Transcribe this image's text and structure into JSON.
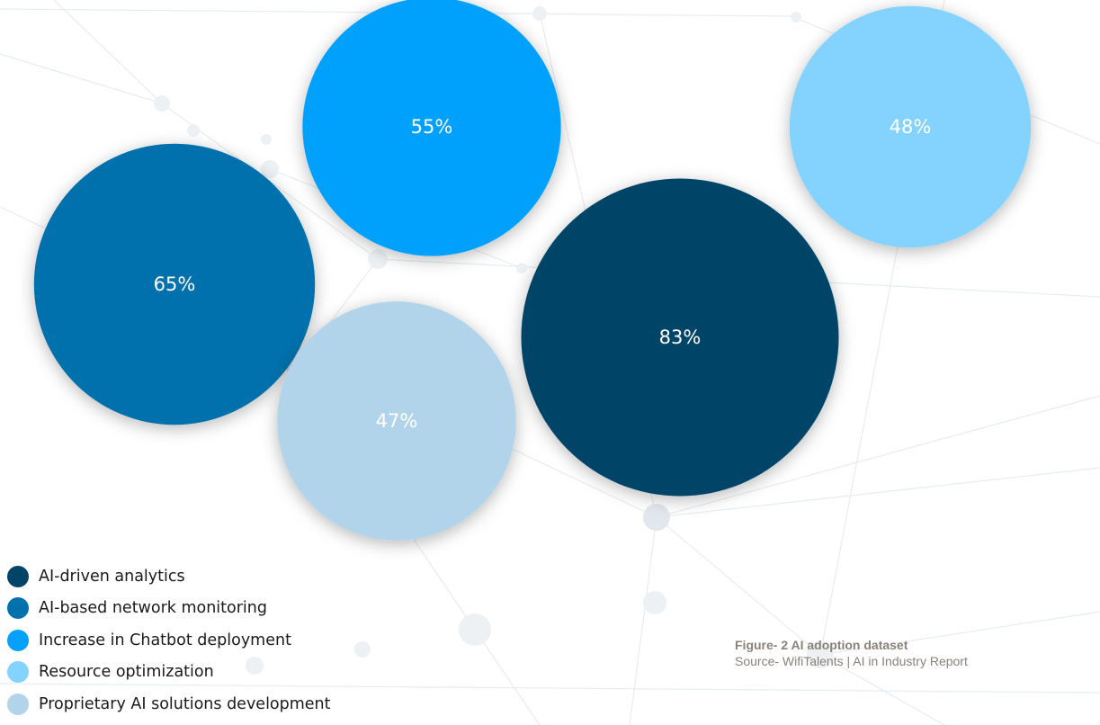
{
  "chart_data": {
    "type": "bubble",
    "series": [
      {
        "name": "AI-driven analytics",
        "value": 83,
        "label": "83%",
        "color": "#024468"
      },
      {
        "name": "AI-based network monitoring",
        "value": 65,
        "label": "65%",
        "color": "#0271ad"
      },
      {
        "name": "Increase in Chatbot deployment",
        "value": 55,
        "label": "55%",
        "color": "#03a1fd"
      },
      {
        "name": "Resource optimization",
        "value": 48,
        "label": "48%",
        "color": "#84d3ff"
      },
      {
        "name": "Proprietary AI solutions development",
        "value": 47,
        "label": "47%",
        "color": "#b2d4ea"
      }
    ],
    "legend_position": "bottom-left"
  },
  "caption": {
    "title": "Figure- 2 AI adoption dataset",
    "source": "Source- WifiTalents | AI in Industry Report"
  }
}
